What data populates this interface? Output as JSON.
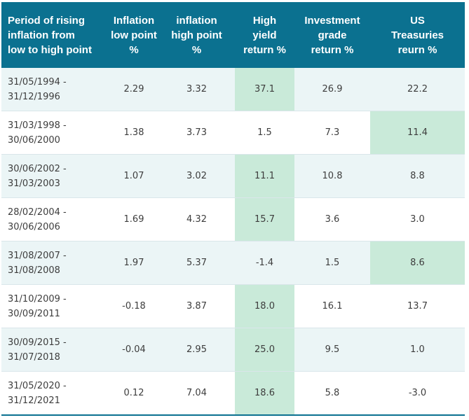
{
  "headers": [
    "Period of rising\ninflation from\nlow to high point",
    "Inflation\nlow point\n%",
    "inflation\nhigh point\n%",
    "High\nyield\nreturn %",
    "Investment\ngrade\nreturn %",
    "US\nTreasuries\nreurn %"
  ],
  "rows": [
    {
      "period_start": "31/05/1994 -",
      "period_end": "31/12/1996",
      "low": "2.29",
      "high": "3.32",
      "hy": "37.1",
      "ig": "26.9",
      "ust": "22.2",
      "best": "hy"
    },
    {
      "period_start": "31/03/1998 -",
      "period_end": "30/06/2000",
      "low": "1.38",
      "high": "3.73",
      "hy": "1.5",
      "ig": "7.3",
      "ust": "11.4",
      "best": "ust"
    },
    {
      "period_start": "30/06/2002 -",
      "period_end": "31/03/2003",
      "low": "1.07",
      "high": "3.02",
      "hy": "11.1",
      "ig": "10.8",
      "ust": "8.8",
      "best": "hy"
    },
    {
      "period_start": "28/02/2004 -",
      "period_end": "30/06/2006",
      "low": "1.69",
      "high": "4.32",
      "hy": "15.7",
      "ig": "3.6",
      "ust": "3.0",
      "best": "hy"
    },
    {
      "period_start": "31/08/2007 -",
      "period_end": "31/08/2008",
      "low": "1.97",
      "high": "5.37",
      "hy": "-1.4",
      "ig": "1.5",
      "ust": "8.6",
      "best": "ust"
    },
    {
      "period_start": "31/10/2009 -",
      "period_end": "30/09/2011",
      "low": "-0.18",
      "high": "3.87",
      "hy": "18.0",
      "ig": "16.1",
      "ust": "13.7",
      "best": "hy"
    },
    {
      "period_start": "30/09/2015 -",
      "period_end": "31/07/2018",
      "low": "-0.04",
      "high": "2.95",
      "hy": "25.0",
      "ig": "9.5",
      "ust": "1.0",
      "best": "hy"
    },
    {
      "period_start": "31/05/2020 -",
      "period_end": "31/12/2021",
      "low": "0.12",
      "high": "7.04",
      "hy": "18.6",
      "ig": "5.8",
      "ust": "-3.0",
      "best": "hy"
    }
  ],
  "colors": {
    "header_bg": "#0b7190",
    "alt_row_bg": "#ebf5f6",
    "highlight_bg": "#c9ead9"
  }
}
